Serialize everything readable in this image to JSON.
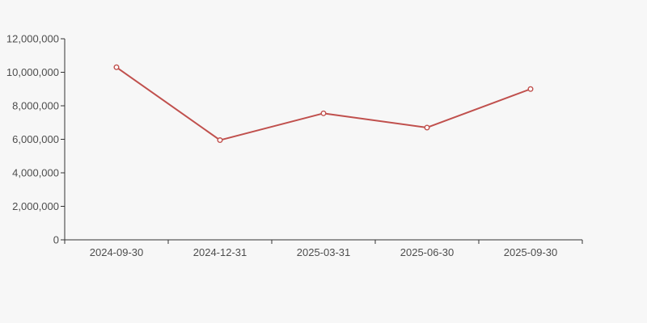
{
  "page": {
    "background_color": "#f7f7f7"
  },
  "chart_data": {
    "type": "line",
    "title": "",
    "xlabel": "",
    "ylabel": "",
    "categories": [
      "2024-09-30",
      "2024-12-31",
      "2025-03-31",
      "2025-06-30",
      "2025-09-30"
    ],
    "values": [
      10300000,
      5950000,
      7550000,
      6700000,
      9000000
    ],
    "ylim": [
      0,
      12000000
    ],
    "y_tick_step": 2000000,
    "y_tick_labels": [
      "0",
      "2,000,000",
      "4,000,000",
      "6,000,000",
      "8,000,000",
      "10,000,000",
      "12,000,000"
    ],
    "grid": false,
    "legend": false,
    "marker": "hollow-circle",
    "colors": {
      "line": "#c0504d",
      "marker_fill": "#ffffff",
      "axis_line": "#333333",
      "tick_label": "#4d4d4d",
      "background": "#f7f7f7"
    }
  }
}
